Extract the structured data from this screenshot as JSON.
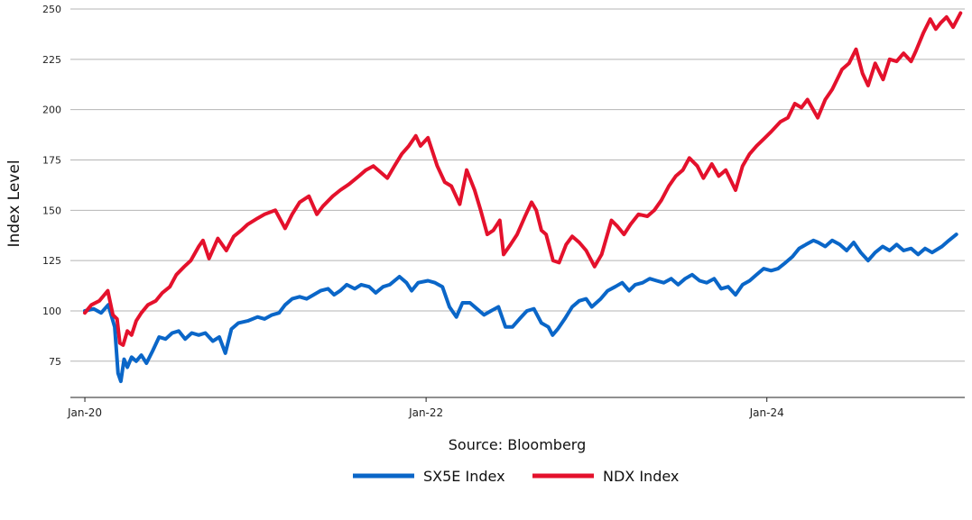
{
  "chart_data": {
    "type": "line",
    "title": "",
    "ylabel": "Index Level",
    "xlabel": "Source: Bloomberg",
    "x_range": [
      "2019-12-01",
      "2025-02-28"
    ],
    "ylim": [
      57,
      250
    ],
    "yticks": [
      75,
      100,
      125,
      150,
      175,
      200,
      225,
      250
    ],
    "xticks": [
      {
        "date": "2020-01-01",
        "label": "Jan-20"
      },
      {
        "date": "2022-01-01",
        "label": "Jan-22"
      },
      {
        "date": "2024-01-01",
        "label": "Jan-24"
      }
    ],
    "grid": "horizontal",
    "legend": "bottom-center",
    "series": [
      {
        "name": "SX5E Index",
        "color": "#0a66c8",
        "points": [
          [
            "2020-01-01",
            100
          ],
          [
            "2020-01-20",
            101
          ],
          [
            "2020-02-05",
            99
          ],
          [
            "2020-02-20",
            103
          ],
          [
            "2020-03-05",
            92
          ],
          [
            "2020-03-12",
            69
          ],
          [
            "2020-03-18",
            65
          ],
          [
            "2020-03-25",
            76
          ],
          [
            "2020-04-01",
            72
          ],
          [
            "2020-04-10",
            77
          ],
          [
            "2020-04-20",
            75
          ],
          [
            "2020-05-01",
            78
          ],
          [
            "2020-05-12",
            74
          ],
          [
            "2020-05-25",
            80
          ],
          [
            "2020-06-08",
            87
          ],
          [
            "2020-06-22",
            86
          ],
          [
            "2020-07-06",
            89
          ],
          [
            "2020-07-20",
            90
          ],
          [
            "2020-08-03",
            86
          ],
          [
            "2020-08-17",
            89
          ],
          [
            "2020-09-01",
            88
          ],
          [
            "2020-09-15",
            89
          ],
          [
            "2020-10-01",
            85
          ],
          [
            "2020-10-15",
            87
          ],
          [
            "2020-10-28",
            79
          ],
          [
            "2020-11-10",
            91
          ],
          [
            "2020-11-25",
            94
          ],
          [
            "2020-12-15",
            95
          ],
          [
            "2021-01-05",
            97
          ],
          [
            "2021-01-20",
            96
          ],
          [
            "2021-02-05",
            98
          ],
          [
            "2021-02-20",
            99
          ],
          [
            "2021-03-05",
            103
          ],
          [
            "2021-03-20",
            106
          ],
          [
            "2021-04-05",
            107
          ],
          [
            "2021-04-20",
            106
          ],
          [
            "2021-05-05",
            108
          ],
          [
            "2021-05-20",
            110
          ],
          [
            "2021-06-05",
            111
          ],
          [
            "2021-06-18",
            108
          ],
          [
            "2021-07-01",
            110
          ],
          [
            "2021-07-15",
            113
          ],
          [
            "2021-08-01",
            111
          ],
          [
            "2021-08-15",
            113
          ],
          [
            "2021-09-01",
            112
          ],
          [
            "2021-09-15",
            109
          ],
          [
            "2021-10-01",
            112
          ],
          [
            "2021-10-15",
            113
          ],
          [
            "2021-11-05",
            117
          ],
          [
            "2021-11-20",
            114
          ],
          [
            "2021-12-01",
            110
          ],
          [
            "2021-12-15",
            114
          ],
          [
            "2022-01-05",
            115
          ],
          [
            "2022-01-20",
            114
          ],
          [
            "2022-02-05",
            112
          ],
          [
            "2022-02-20",
            102
          ],
          [
            "2022-03-07",
            97
          ],
          [
            "2022-03-20",
            104
          ],
          [
            "2022-04-05",
            104
          ],
          [
            "2022-04-20",
            101
          ],
          [
            "2022-05-05",
            98
          ],
          [
            "2022-05-20",
            100
          ],
          [
            "2022-06-05",
            102
          ],
          [
            "2022-06-20",
            92
          ],
          [
            "2022-07-05",
            92
          ],
          [
            "2022-07-20",
            96
          ],
          [
            "2022-08-05",
            100
          ],
          [
            "2022-08-20",
            101
          ],
          [
            "2022-09-05",
            94
          ],
          [
            "2022-09-20",
            92
          ],
          [
            "2022-09-29",
            88
          ],
          [
            "2022-10-10",
            91
          ],
          [
            "2022-10-25",
            96
          ],
          [
            "2022-11-10",
            102
          ],
          [
            "2022-11-25",
            105
          ],
          [
            "2022-12-10",
            106
          ],
          [
            "2022-12-22",
            102
          ],
          [
            "2023-01-10",
            106
          ],
          [
            "2023-01-25",
            110
          ],
          [
            "2023-02-10",
            112
          ],
          [
            "2023-02-25",
            114
          ],
          [
            "2023-03-12",
            110
          ],
          [
            "2023-03-25",
            113
          ],
          [
            "2023-04-10",
            114
          ],
          [
            "2023-04-25",
            116
          ],
          [
            "2023-05-10",
            115
          ],
          [
            "2023-05-25",
            114
          ],
          [
            "2023-06-10",
            116
          ],
          [
            "2023-06-25",
            113
          ],
          [
            "2023-07-10",
            116
          ],
          [
            "2023-07-25",
            118
          ],
          [
            "2023-08-10",
            115
          ],
          [
            "2023-08-25",
            114
          ],
          [
            "2023-09-10",
            116
          ],
          [
            "2023-09-25",
            111
          ],
          [
            "2023-10-10",
            112
          ],
          [
            "2023-10-26",
            108
          ],
          [
            "2023-11-10",
            113
          ],
          [
            "2023-11-25",
            115
          ],
          [
            "2023-12-10",
            118
          ],
          [
            "2023-12-25",
            121
          ],
          [
            "2024-01-10",
            120
          ],
          [
            "2024-01-25",
            121
          ],
          [
            "2024-02-10",
            124
          ],
          [
            "2024-02-25",
            127
          ],
          [
            "2024-03-10",
            131
          ],
          [
            "2024-03-25",
            133
          ],
          [
            "2024-04-10",
            135
          ],
          [
            "2024-04-20",
            134
          ],
          [
            "2024-05-05",
            132
          ],
          [
            "2024-05-20",
            135
          ],
          [
            "2024-06-05",
            133
          ],
          [
            "2024-06-20",
            130
          ],
          [
            "2024-07-05",
            134
          ],
          [
            "2024-07-20",
            129
          ],
          [
            "2024-08-05",
            125
          ],
          [
            "2024-08-20",
            129
          ],
          [
            "2024-09-05",
            132
          ],
          [
            "2024-09-20",
            130
          ],
          [
            "2024-10-05",
            133
          ],
          [
            "2024-10-20",
            130
          ],
          [
            "2024-11-05",
            131
          ],
          [
            "2024-11-20",
            128
          ],
          [
            "2024-12-05",
            131
          ],
          [
            "2024-12-20",
            129
          ],
          [
            "2025-01-10",
            132
          ],
          [
            "2025-01-25",
            135
          ],
          [
            "2025-02-10",
            138
          ]
        ]
      },
      {
        "name": "NDX Index",
        "color": "#e4112c",
        "points": [
          [
            "2020-01-01",
            99
          ],
          [
            "2020-01-15",
            103
          ],
          [
            "2020-02-01",
            105
          ],
          [
            "2020-02-19",
            110
          ],
          [
            "2020-03-01",
            98
          ],
          [
            "2020-03-10",
            96
          ],
          [
            "2020-03-16",
            84
          ],
          [
            "2020-03-23",
            83
          ],
          [
            "2020-04-01",
            90
          ],
          [
            "2020-04-10",
            88
          ],
          [
            "2020-04-20",
            95
          ],
          [
            "2020-05-01",
            99
          ],
          [
            "2020-05-15",
            103
          ],
          [
            "2020-06-01",
            105
          ],
          [
            "2020-06-15",
            109
          ],
          [
            "2020-07-01",
            112
          ],
          [
            "2020-07-15",
            118
          ],
          [
            "2020-08-01",
            122
          ],
          [
            "2020-08-15",
            125
          ],
          [
            "2020-09-01",
            132
          ],
          [
            "2020-09-10",
            135
          ],
          [
            "2020-09-23",
            126
          ],
          [
            "2020-10-12",
            136
          ],
          [
            "2020-10-30",
            130
          ],
          [
            "2020-11-15",
            137
          ],
          [
            "2020-12-01",
            140
          ],
          [
            "2020-12-15",
            143
          ],
          [
            "2021-01-05",
            146
          ],
          [
            "2021-01-20",
            148
          ],
          [
            "2021-02-12",
            150
          ],
          [
            "2021-03-05",
            141
          ],
          [
            "2021-03-20",
            148
          ],
          [
            "2021-04-05",
            154
          ],
          [
            "2021-04-25",
            157
          ],
          [
            "2021-05-12",
            148
          ],
          [
            "2021-05-25",
            152
          ],
          [
            "2021-06-15",
            157
          ],
          [
            "2021-07-01",
            160
          ],
          [
            "2021-07-20",
            163
          ],
          [
            "2021-08-10",
            167
          ],
          [
            "2021-08-25",
            170
          ],
          [
            "2021-09-10",
            172
          ],
          [
            "2021-09-25",
            169
          ],
          [
            "2021-10-10",
            166
          ],
          [
            "2021-10-25",
            172
          ],
          [
            "2021-11-10",
            178
          ],
          [
            "2021-11-25",
            182
          ],
          [
            "2021-12-10",
            187
          ],
          [
            "2021-12-20",
            182
          ],
          [
            "2022-01-05",
            186
          ],
          [
            "2022-01-25",
            172
          ],
          [
            "2022-02-10",
            164
          ],
          [
            "2022-02-24",
            162
          ],
          [
            "2022-03-14",
            153
          ],
          [
            "2022-03-29",
            170
          ],
          [
            "2022-04-15",
            160
          ],
          [
            "2022-04-28",
            150
          ],
          [
            "2022-05-12",
            138
          ],
          [
            "2022-05-25",
            140
          ],
          [
            "2022-06-08",
            145
          ],
          [
            "2022-06-16",
            128
          ],
          [
            "2022-07-01",
            133
          ],
          [
            "2022-07-15",
            138
          ],
          [
            "2022-08-01",
            147
          ],
          [
            "2022-08-15",
            154
          ],
          [
            "2022-08-25",
            150
          ],
          [
            "2022-09-05",
            140
          ],
          [
            "2022-09-15",
            138
          ],
          [
            "2022-09-30",
            125
          ],
          [
            "2022-10-13",
            124
          ],
          [
            "2022-10-28",
            133
          ],
          [
            "2022-11-10",
            137
          ],
          [
            "2022-11-25",
            134
          ],
          [
            "2022-12-10",
            130
          ],
          [
            "2022-12-28",
            122
          ],
          [
            "2023-01-12",
            128
          ],
          [
            "2023-02-02",
            145
          ],
          [
            "2023-02-15",
            142
          ],
          [
            "2023-03-01",
            138
          ],
          [
            "2023-03-15",
            143
          ],
          [
            "2023-04-01",
            148
          ],
          [
            "2023-04-20",
            147
          ],
          [
            "2023-05-05",
            150
          ],
          [
            "2023-05-20",
            155
          ],
          [
            "2023-06-05",
            162
          ],
          [
            "2023-06-20",
            167
          ],
          [
            "2023-07-05",
            170
          ],
          [
            "2023-07-19",
            176
          ],
          [
            "2023-08-05",
            172
          ],
          [
            "2023-08-18",
            166
          ],
          [
            "2023-09-05",
            173
          ],
          [
            "2023-09-20",
            167
          ],
          [
            "2023-10-05",
            170
          ],
          [
            "2023-10-26",
            160
          ],
          [
            "2023-11-10",
            172
          ],
          [
            "2023-11-25",
            178
          ],
          [
            "2023-12-10",
            182
          ],
          [
            "2023-12-28",
            186
          ],
          [
            "2024-01-10",
            189
          ],
          [
            "2024-01-30",
            194
          ],
          [
            "2024-02-15",
            196
          ],
          [
            "2024-03-01",
            203
          ],
          [
            "2024-03-15",
            201
          ],
          [
            "2024-03-28",
            205
          ],
          [
            "2024-04-19",
            196
          ],
          [
            "2024-05-05",
            205
          ],
          [
            "2024-05-20",
            210
          ],
          [
            "2024-06-10",
            220
          ],
          [
            "2024-06-25",
            223
          ],
          [
            "2024-07-10",
            230
          ],
          [
            "2024-07-24",
            218
          ],
          [
            "2024-08-05",
            212
          ],
          [
            "2024-08-20",
            223
          ],
          [
            "2024-09-06",
            215
          ],
          [
            "2024-09-20",
            225
          ],
          [
            "2024-10-05",
            224
          ],
          [
            "2024-10-20",
            228
          ],
          [
            "2024-11-05",
            224
          ],
          [
            "2024-11-15",
            229
          ],
          [
            "2024-12-01",
            238
          ],
          [
            "2024-12-16",
            245
          ],
          [
            "2024-12-28",
            240
          ],
          [
            "2025-01-07",
            243
          ],
          [
            "2025-01-20",
            246
          ],
          [
            "2025-02-03",
            241
          ],
          [
            "2025-02-19",
            248
          ]
        ]
      }
    ]
  }
}
